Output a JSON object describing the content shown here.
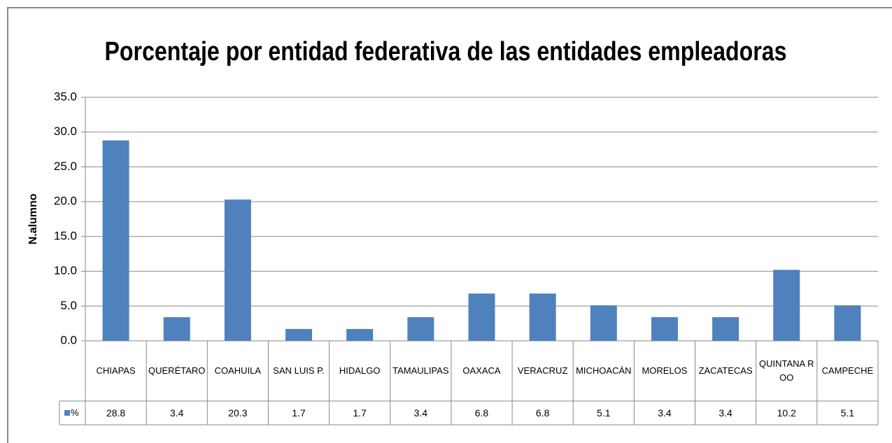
{
  "chart_data": {
    "type": "bar",
    "title": "Porcentaje por entidad federativa de las entidades empleadoras",
    "ylabel": "N.alumno",
    "categories": [
      "CHIAPAS",
      "QUERÉTARO",
      "COAHUILA",
      "SAN LUIS P.",
      "HIDALGO",
      "TAMAULIPAS",
      "OAXACA",
      "VERACRUZ",
      "MICHOACÁN",
      "MORELOS",
      "ZACATECAS",
      "QUINTANA ROO",
      "CAMPECHE"
    ],
    "series": [
      {
        "name": "%",
        "color": "#4f81bd",
        "values": [
          28.8,
          3.4,
          20.3,
          1.7,
          1.7,
          3.4,
          6.8,
          6.8,
          5.1,
          3.4,
          3.4,
          10.2,
          5.1
        ]
      }
    ],
    "ylim": [
      0,
      35
    ],
    "yticks": [
      {
        "value": 0,
        "label": "0.0"
      },
      {
        "value": 5,
        "label": "5.0"
      },
      {
        "value": 10,
        "label": "10.0"
      },
      {
        "value": 15,
        "label": "15.0"
      },
      {
        "value": 20,
        "label": "20.0"
      },
      {
        "value": 25,
        "label": "25.0"
      },
      {
        "value": 30,
        "label": "30.0"
      },
      {
        "value": 35,
        "label": "35.0"
      }
    ],
    "grid": true
  }
}
